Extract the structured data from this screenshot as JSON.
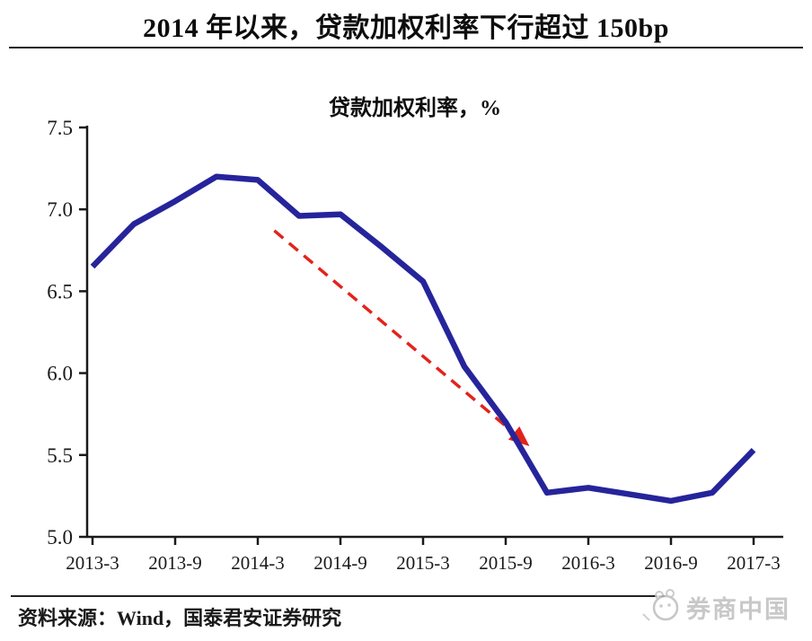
{
  "page": {
    "title": "2014 年以来，贷款加权利率下行超过 150bp",
    "source_note": "资料来源：Wind，国泰君安证券研究",
    "watermark": "券商中国"
  },
  "chart_data": {
    "type": "line",
    "title": "贷款加权利率，%",
    "categories": [
      "2013-3",
      "2013-6",
      "2013-9",
      "2013-12",
      "2014-3",
      "2014-6",
      "2014-9",
      "2014-12",
      "2015-3",
      "2015-6",
      "2015-9",
      "2015-12",
      "2016-3",
      "2016-6",
      "2016-9",
      "2016-12",
      "2017-3"
    ],
    "values": [
      6.65,
      6.91,
      7.05,
      7.2,
      7.18,
      6.96,
      6.97,
      6.77,
      6.56,
      6.04,
      5.7,
      5.27,
      5.3,
      5.26,
      5.22,
      5.27,
      5.53
    ],
    "x_tick_labels": [
      "2013-3",
      "2013-9",
      "2014-3",
      "2014-9",
      "2015-3",
      "2015-9",
      "2016-3",
      "2016-9",
      "2017-3"
    ],
    "x_tick_every": 2,
    "y_ticks": [
      5.0,
      5.5,
      6.0,
      6.5,
      7.0,
      7.5
    ],
    "ylim": [
      5.0,
      7.5
    ],
    "grid": false,
    "legend": "none",
    "line_color": "#26249b",
    "axis_color": "#1a1a1a",
    "annotation_arrow": {
      "style": "dashed",
      "color": "#e2231c",
      "from": {
        "x": 4.4,
        "y": 6.87
      },
      "to": {
        "x": 10.5,
        "y": 5.57
      }
    }
  }
}
